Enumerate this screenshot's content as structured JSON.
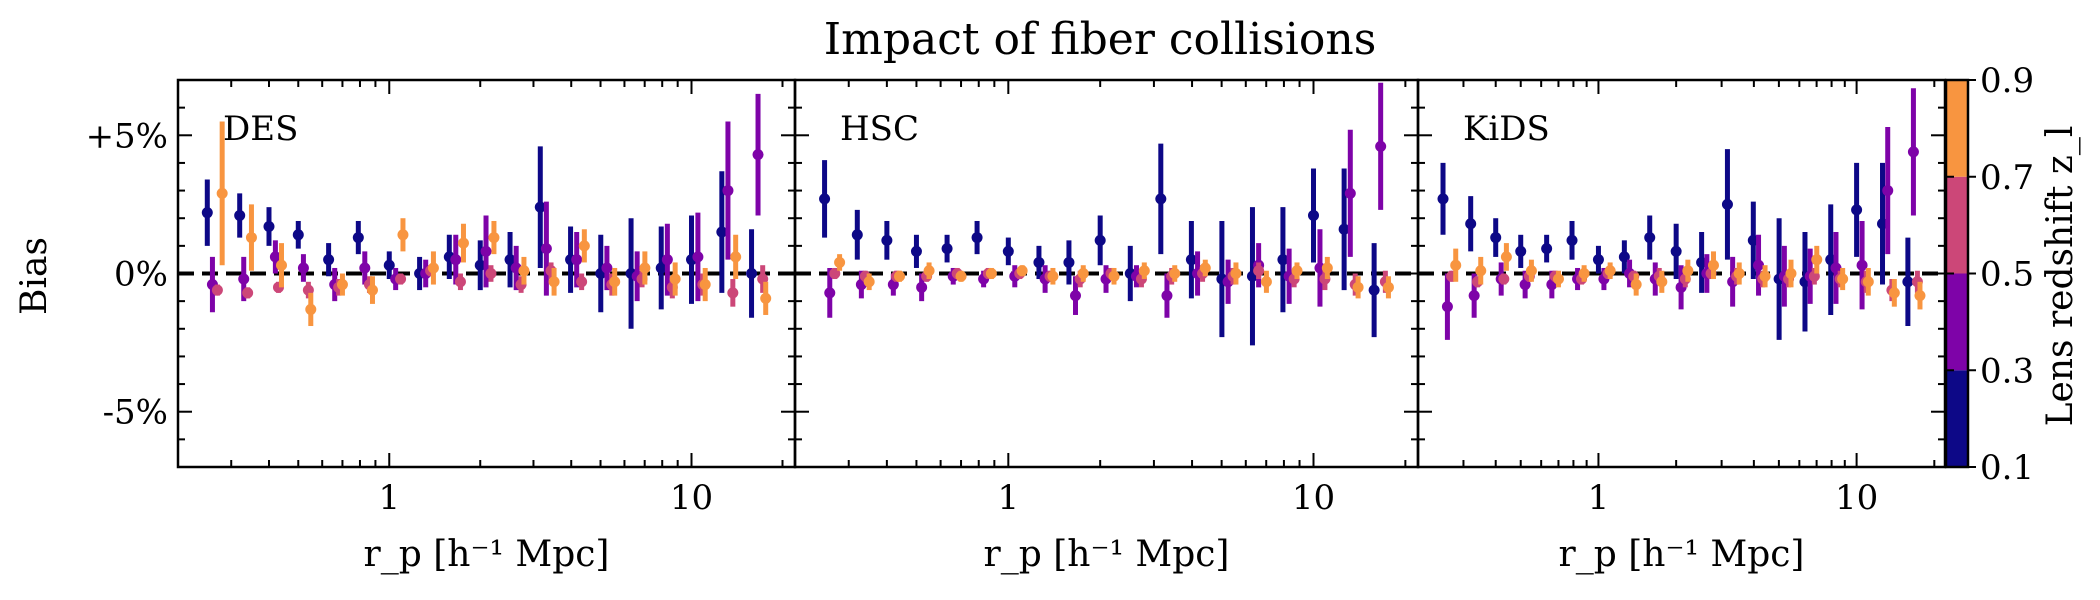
{
  "title": "Impact of fiber collisions",
  "ylabel": "Bias",
  "xlabel": "r_p [h⁻¹ Mpc]",
  "colorbar": {
    "label": "Lens redshift z_l",
    "ticks": [
      "0.1",
      "0.3",
      "0.5",
      "0.7",
      "0.9"
    ],
    "colors": [
      "#0d0887",
      "#7e03a8",
      "#cc4778",
      "#f89540"
    ]
  },
  "chart_data": [
    {
      "type": "scatter",
      "panel": "DES",
      "xscale": "log",
      "xlim": [
        0.2,
        22
      ],
      "ylim": [
        -7,
        7
      ],
      "yticks": [
        {
          "value": 5,
          "label": "+5%"
        },
        {
          "value": 0,
          "label": "0%"
        },
        {
          "value": -5,
          "label": "-5%"
        }
      ],
      "xticks": [
        {
          "value": 1,
          "label": "1"
        },
        {
          "value": 10,
          "label": "10"
        }
      ],
      "reference_line": 0,
      "series": [
        {
          "z_bin": "0.1-0.3",
          "x": [
            0.25,
            0.32,
            0.4,
            0.5,
            0.63,
            0.79,
            1.0,
            1.26,
            1.58,
            2.0,
            2.51,
            3.16,
            3.98,
            5.01,
            6.31,
            7.94,
            10.0,
            12.6,
            15.8
          ],
          "y": [
            2.2,
            2.1,
            1.7,
            1.4,
            0.5,
            1.3,
            0.3,
            0.0,
            0.6,
            0.3,
            0.5,
            2.4,
            0.5,
            0.0,
            0.0,
            0.2,
            0.5,
            1.5,
            0.0
          ],
          "err": [
            1.2,
            0.8,
            0.7,
            0.5,
            0.6,
            0.6,
            0.5,
            0.6,
            0.8,
            0.9,
            1.0,
            2.2,
            1.2,
            1.4,
            2.0,
            1.5,
            1.6,
            2.2,
            1.6
          ]
        },
        {
          "z_bin": "0.3-0.5",
          "x": [
            0.26,
            0.33,
            0.42,
            0.52,
            0.66,
            0.83,
            1.05,
            1.32,
            1.66,
            2.09,
            2.63,
            3.31,
            4.17,
            5.25,
            6.61,
            8.32,
            10.5,
            13.2,
            16.6
          ],
          "y": [
            -0.4,
            -0.2,
            0.6,
            0.2,
            -0.4,
            0.2,
            -0.2,
            0.0,
            0.5,
            0.8,
            0.2,
            0.9,
            0.5,
            0.2,
            -0.1,
            0.5,
            0.6,
            3.0,
            4.3
          ],
          "err": [
            1.0,
            0.8,
            0.6,
            0.5,
            0.6,
            0.6,
            0.4,
            0.5,
            0.9,
            1.3,
            0.8,
            1.7,
            1.0,
            0.8,
            0.9,
            1.3,
            1.6,
            2.5,
            2.2
          ]
        },
        {
          "z_bin": "0.5-0.7",
          "x": [
            0.27,
            0.34,
            0.43,
            0.54,
            0.68,
            0.86,
            1.09,
            1.37,
            1.72,
            2.17,
            2.73,
            3.43,
            4.33,
            5.45,
            6.86,
            8.64,
            10.9,
            13.7,
            17.2
          ],
          "y": [
            -0.6,
            -0.7,
            -0.5,
            -0.6,
            -0.5,
            -0.4,
            -0.2,
            0.1,
            -0.3,
            0.0,
            -0.4,
            0.1,
            -0.3,
            -0.4,
            -0.2,
            -0.5,
            -0.4,
            -0.7,
            -0.2
          ],
          "err": [
            0.2,
            0.2,
            0.2,
            0.3,
            0.3,
            0.3,
            0.2,
            0.2,
            0.3,
            0.3,
            0.3,
            0.3,
            0.3,
            0.4,
            0.3,
            0.4,
            0.4,
            0.5,
            0.5
          ]
        },
        {
          "z_bin": "0.7-0.9",
          "x": [
            0.28,
            0.35,
            0.44,
            0.55,
            0.7,
            0.88,
            1.11,
            1.4,
            1.76,
            2.22,
            2.79,
            3.51,
            4.42,
            5.57,
            7.01,
            8.83,
            11.1,
            14.0,
            17.6
          ],
          "y": [
            2.9,
            1.3,
            0.3,
            -1.3,
            -0.4,
            -0.6,
            1.4,
            0.2,
            1.1,
            1.3,
            0.1,
            -0.3,
            1.0,
            -0.3,
            0.2,
            -0.2,
            -0.4,
            0.6,
            -0.9
          ],
          "err": [
            2.6,
            1.2,
            0.8,
            0.6,
            0.4,
            0.5,
            0.6,
            0.6,
            0.7,
            0.6,
            0.5,
            0.5,
            0.6,
            0.5,
            0.6,
            0.6,
            0.6,
            0.8,
            0.6
          ]
        }
      ]
    },
    {
      "type": "scatter",
      "panel": "HSC",
      "xscale": "log",
      "xlim": [
        0.2,
        22
      ],
      "ylim": [
        -7,
        7
      ],
      "xticks": [
        {
          "value": 1,
          "label": "1"
        },
        {
          "value": 10,
          "label": "10"
        }
      ],
      "reference_line": 0,
      "series": [
        {
          "z_bin": "0.1-0.3",
          "x": [
            0.25,
            0.32,
            0.4,
            0.5,
            0.63,
            0.79,
            1.0,
            1.26,
            1.58,
            2.0,
            2.51,
            3.16,
            3.98,
            5.01,
            6.31,
            7.94,
            10.0,
            12.6,
            15.8
          ],
          "y": [
            2.7,
            1.4,
            1.2,
            0.8,
            0.9,
            1.3,
            0.8,
            0.4,
            0.4,
            1.2,
            0.0,
            2.7,
            0.5,
            -0.2,
            -0.1,
            0.5,
            2.1,
            1.6,
            -0.6
          ],
          "err": [
            1.4,
            0.9,
            0.7,
            0.6,
            0.5,
            0.6,
            0.5,
            0.6,
            0.8,
            0.9,
            1.0,
            2.0,
            1.4,
            2.1,
            2.5,
            1.9,
            1.7,
            2.2,
            1.7
          ]
        },
        {
          "z_bin": "0.3-0.5",
          "x": [
            0.26,
            0.33,
            0.42,
            0.52,
            0.66,
            0.83,
            1.05,
            1.32,
            1.66,
            2.09,
            2.63,
            3.31,
            4.17,
            5.25,
            6.61,
            8.32,
            10.5,
            13.2,
            16.6
          ],
          "y": [
            -0.7,
            -0.4,
            -0.4,
            -0.5,
            -0.1,
            -0.2,
            -0.1,
            -0.2,
            -0.8,
            -0.2,
            -0.1,
            -0.8,
            0.0,
            -0.3,
            0.3,
            -0.1,
            0.2,
            2.9,
            4.6
          ],
          "err": [
            0.9,
            0.5,
            0.4,
            0.5,
            0.3,
            0.3,
            0.4,
            0.5,
            0.7,
            0.5,
            0.4,
            0.8,
            0.8,
            0.8,
            0.8,
            1.0,
            1.4,
            2.3,
            2.3
          ]
        },
        {
          "z_bin": "0.5-0.7",
          "x": [
            0.27,
            0.34,
            0.43,
            0.54,
            0.68,
            0.86,
            1.09,
            1.37,
            1.72,
            2.17,
            2.73,
            3.43,
            4.33,
            5.45,
            6.61,
            8.64,
            10.9,
            13.7,
            17.2
          ],
          "y": [
            0.0,
            -0.1,
            -0.1,
            -0.1,
            0.0,
            0.0,
            0.0,
            -0.1,
            -0.2,
            0.0,
            -0.2,
            -0.1,
            0.0,
            -0.1,
            0.1,
            -0.2,
            -0.2,
            -0.4,
            -0.3
          ],
          "err": [
            0.2,
            0.2,
            0.2,
            0.2,
            0.2,
            0.2,
            0.2,
            0.2,
            0.3,
            0.2,
            0.3,
            0.3,
            0.3,
            0.3,
            0.3,
            0.3,
            0.4,
            0.4,
            0.4
          ]
        },
        {
          "z_bin": "0.7-0.9",
          "x": [
            0.28,
            0.35,
            0.44,
            0.55,
            0.7,
            0.88,
            1.11,
            1.4,
            1.76,
            2.22,
            2.79,
            3.51,
            4.42,
            5.57,
            7.01,
            8.83,
            11.1,
            14.0,
            17.6
          ],
          "y": [
            0.4,
            -0.3,
            -0.1,
            0.1,
            -0.1,
            0.0,
            0.1,
            -0.1,
            0.0,
            -0.1,
            0.1,
            0.0,
            0.2,
            0.0,
            -0.3,
            0.1,
            0.2,
            -0.5,
            -0.5
          ],
          "err": [
            0.3,
            0.3,
            0.2,
            0.3,
            0.2,
            0.2,
            0.2,
            0.3,
            0.3,
            0.3,
            0.3,
            0.3,
            0.3,
            0.4,
            0.4,
            0.3,
            0.4,
            0.4,
            0.4
          ]
        }
      ]
    },
    {
      "type": "scatter",
      "panel": "KiDS",
      "xscale": "log",
      "xlim": [
        0.2,
        22
      ],
      "ylim": [
        -7,
        7
      ],
      "xticks": [
        {
          "value": 1,
          "label": "1"
        },
        {
          "value": 10,
          "label": "10"
        }
      ],
      "reference_line": 0,
      "series": [
        {
          "z_bin": "0.1-0.3",
          "x": [
            0.25,
            0.32,
            0.4,
            0.5,
            0.63,
            0.79,
            1.0,
            1.26,
            1.58,
            2.0,
            2.51,
            3.16,
            3.98,
            5.01,
            6.31,
            7.94,
            10.0,
            12.6,
            15.8
          ],
          "y": [
            2.7,
            1.8,
            1.3,
            0.8,
            0.9,
            1.2,
            0.5,
            0.6,
            1.3,
            0.8,
            0.4,
            2.5,
            1.2,
            -0.2,
            -0.3,
            0.5,
            2.3,
            1.8,
            -0.3
          ],
          "err": [
            1.3,
            1.0,
            0.7,
            0.6,
            0.5,
            0.7,
            0.5,
            0.6,
            0.8,
            1.0,
            1.1,
            2.0,
            1.4,
            2.2,
            1.8,
            2.0,
            1.7,
            2.2,
            1.6
          ]
        },
        {
          "z_bin": "0.3-0.5",
          "x": [
            0.26,
            0.33,
            0.42,
            0.52,
            0.66,
            0.83,
            1.05,
            1.32,
            1.66,
            2.09,
            2.63,
            3.31,
            4.17,
            5.25,
            6.61,
            8.32,
            10.5,
            13.2,
            16.6
          ],
          "y": [
            -1.2,
            -0.8,
            -0.2,
            -0.4,
            -0.4,
            -0.2,
            -0.2,
            0.0,
            -0.2,
            -0.5,
            0.0,
            -0.3,
            0.3,
            -0.1,
            -0.1,
            0.2,
            0.3,
            3.0,
            4.4
          ],
          "err": [
            1.2,
            0.8,
            0.6,
            0.5,
            0.5,
            0.4,
            0.4,
            0.5,
            0.6,
            0.8,
            0.7,
            0.9,
            1.1,
            1.1,
            1.0,
            1.3,
            1.6,
            2.3,
            2.3
          ]
        },
        {
          "z_bin": "0.5-0.7",
          "x": [
            0.27,
            0.34,
            0.43,
            0.54,
            0.68,
            0.86,
            1.09,
            1.37,
            1.72,
            2.17,
            2.73,
            3.43,
            4.33,
            5.45,
            6.86,
            8.64,
            10.9,
            13.7,
            17.2
          ],
          "y": [
            -0.1,
            -0.3,
            -0.2,
            -0.1,
            -0.1,
            -0.2,
            0.0,
            -0.1,
            -0.1,
            -0.2,
            0.0,
            -0.1,
            -0.2,
            -0.2,
            -0.1,
            -0.2,
            -0.3,
            -0.6,
            -0.3
          ],
          "err": [
            0.2,
            0.2,
            0.2,
            0.2,
            0.2,
            0.2,
            0.2,
            0.2,
            0.3,
            0.3,
            0.2,
            0.3,
            0.3,
            0.3,
            0.3,
            0.3,
            0.4,
            0.4,
            0.4
          ]
        },
        {
          "z_bin": "0.7-0.9",
          "x": [
            0.28,
            0.35,
            0.44,
            0.55,
            0.7,
            0.88,
            1.11,
            1.4,
            1.76,
            2.22,
            2.79,
            3.51,
            4.42,
            5.57,
            7.01,
            8.83,
            11.1,
            14.0,
            17.6
          ],
          "y": [
            0.3,
            0.1,
            0.6,
            0.1,
            -0.2,
            0.0,
            0.1,
            -0.4,
            -0.3,
            0.1,
            0.3,
            0.0,
            -0.1,
            0.0,
            0.5,
            -0.2,
            -0.3,
            -0.7,
            -0.8
          ],
          "err": [
            0.6,
            0.5,
            0.5,
            0.4,
            0.3,
            0.3,
            0.3,
            0.4,
            0.4,
            0.4,
            0.5,
            0.4,
            0.4,
            0.5,
            0.5,
            0.4,
            0.5,
            0.5,
            0.5
          ]
        }
      ]
    }
  ]
}
